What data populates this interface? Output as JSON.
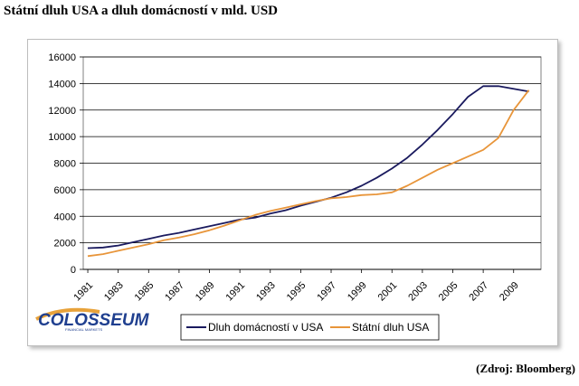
{
  "title": "Státní dluh USA a dluh domácností v mld. USD",
  "source": "(Zdroj: Bloomberg)",
  "logo": {
    "name": "COLOSSEUM",
    "subtitle": "FINANCIAL MARKETS"
  },
  "chart_data": {
    "type": "line",
    "x": [
      1981,
      1982,
      1983,
      1984,
      1985,
      1986,
      1987,
      1988,
      1989,
      1990,
      1991,
      1992,
      1993,
      1994,
      1995,
      1996,
      1997,
      1998,
      1999,
      2000,
      2001,
      2002,
      2003,
      2004,
      2005,
      2006,
      2007,
      2008,
      2009,
      2010
    ],
    "x_tick_labels": [
      "1981",
      "1983",
      "1985",
      "1987",
      "1989",
      "1991",
      "1993",
      "1995",
      "1997",
      "1999",
      "2001",
      "2003",
      "2005",
      "2007",
      "2009"
    ],
    "ylim": [
      0,
      16000
    ],
    "y_ticks": [
      0,
      2000,
      4000,
      6000,
      8000,
      10000,
      12000,
      14000,
      16000
    ],
    "grid": true,
    "legend_position": "bottom",
    "series": [
      {
        "name": "Dluh domácností v USA",
        "color": "#1a1a5e",
        "values": [
          1600,
          1650,
          1800,
          2050,
          2300,
          2550,
          2750,
          3000,
          3250,
          3500,
          3750,
          3900,
          4200,
          4450,
          4800,
          5100,
          5400,
          5800,
          6300,
          6900,
          7600,
          8400,
          9400,
          10500,
          11700,
          13000,
          13800,
          13800,
          13600,
          13400
        ]
      },
      {
        "name": "Státní dluh USA",
        "color": "#e8953a",
        "values": [
          1000,
          1150,
          1400,
          1650,
          1900,
          2200,
          2400,
          2650,
          2950,
          3300,
          3700,
          4100,
          4400,
          4650,
          4900,
          5150,
          5350,
          5450,
          5600,
          5650,
          5800,
          6300,
          6900,
          7500,
          8000,
          8500,
          9000,
          9900,
          12000,
          13500
        ]
      }
    ]
  }
}
